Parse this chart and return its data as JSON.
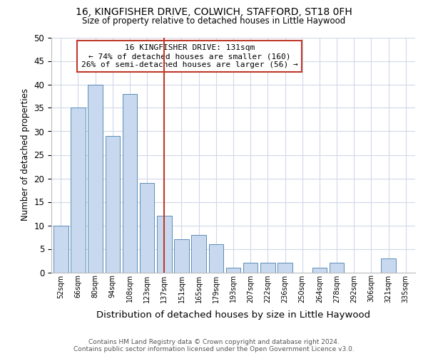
{
  "title": "16, KINGFISHER DRIVE, COLWICH, STAFFORD, ST18 0FH",
  "subtitle": "Size of property relative to detached houses in Little Haywood",
  "xlabel": "Distribution of detached houses by size in Little Haywood",
  "ylabel": "Number of detached properties",
  "bar_labels": [
    "52sqm",
    "66sqm",
    "80sqm",
    "94sqm",
    "108sqm",
    "123sqm",
    "137sqm",
    "151sqm",
    "165sqm",
    "179sqm",
    "193sqm",
    "207sqm",
    "222sqm",
    "236sqm",
    "250sqm",
    "264sqm",
    "278sqm",
    "292sqm",
    "306sqm",
    "321sqm",
    "335sqm"
  ],
  "bar_values": [
    10,
    35,
    40,
    29,
    38,
    19,
    12,
    7,
    8,
    6,
    1,
    2,
    2,
    2,
    0,
    1,
    2,
    0,
    0,
    3,
    0
  ],
  "bar_color": "#c8d9ef",
  "bar_edge_color": "#5b8db8",
  "ylim": [
    0,
    50
  ],
  "yticks": [
    0,
    5,
    10,
    15,
    20,
    25,
    30,
    35,
    40,
    45,
    50
  ],
  "vline_x": 6.0,
  "vline_color": "#c0392b",
  "annotation_line1": "16 KINGFISHER DRIVE: 131sqm",
  "annotation_line2": "← 74% of detached houses are smaller (160)",
  "annotation_line3": "26% of semi-detached houses are larger (56) →",
  "annotation_box_color": "#ffffff",
  "annotation_box_edgecolor": "#c0392b",
  "footer_line1": "Contains HM Land Registry data © Crown copyright and database right 2024.",
  "footer_line2": "Contains public sector information licensed under the Open Government Licence v3.0.",
  "background_color": "#ffffff",
  "grid_color": "#d0d8e8"
}
